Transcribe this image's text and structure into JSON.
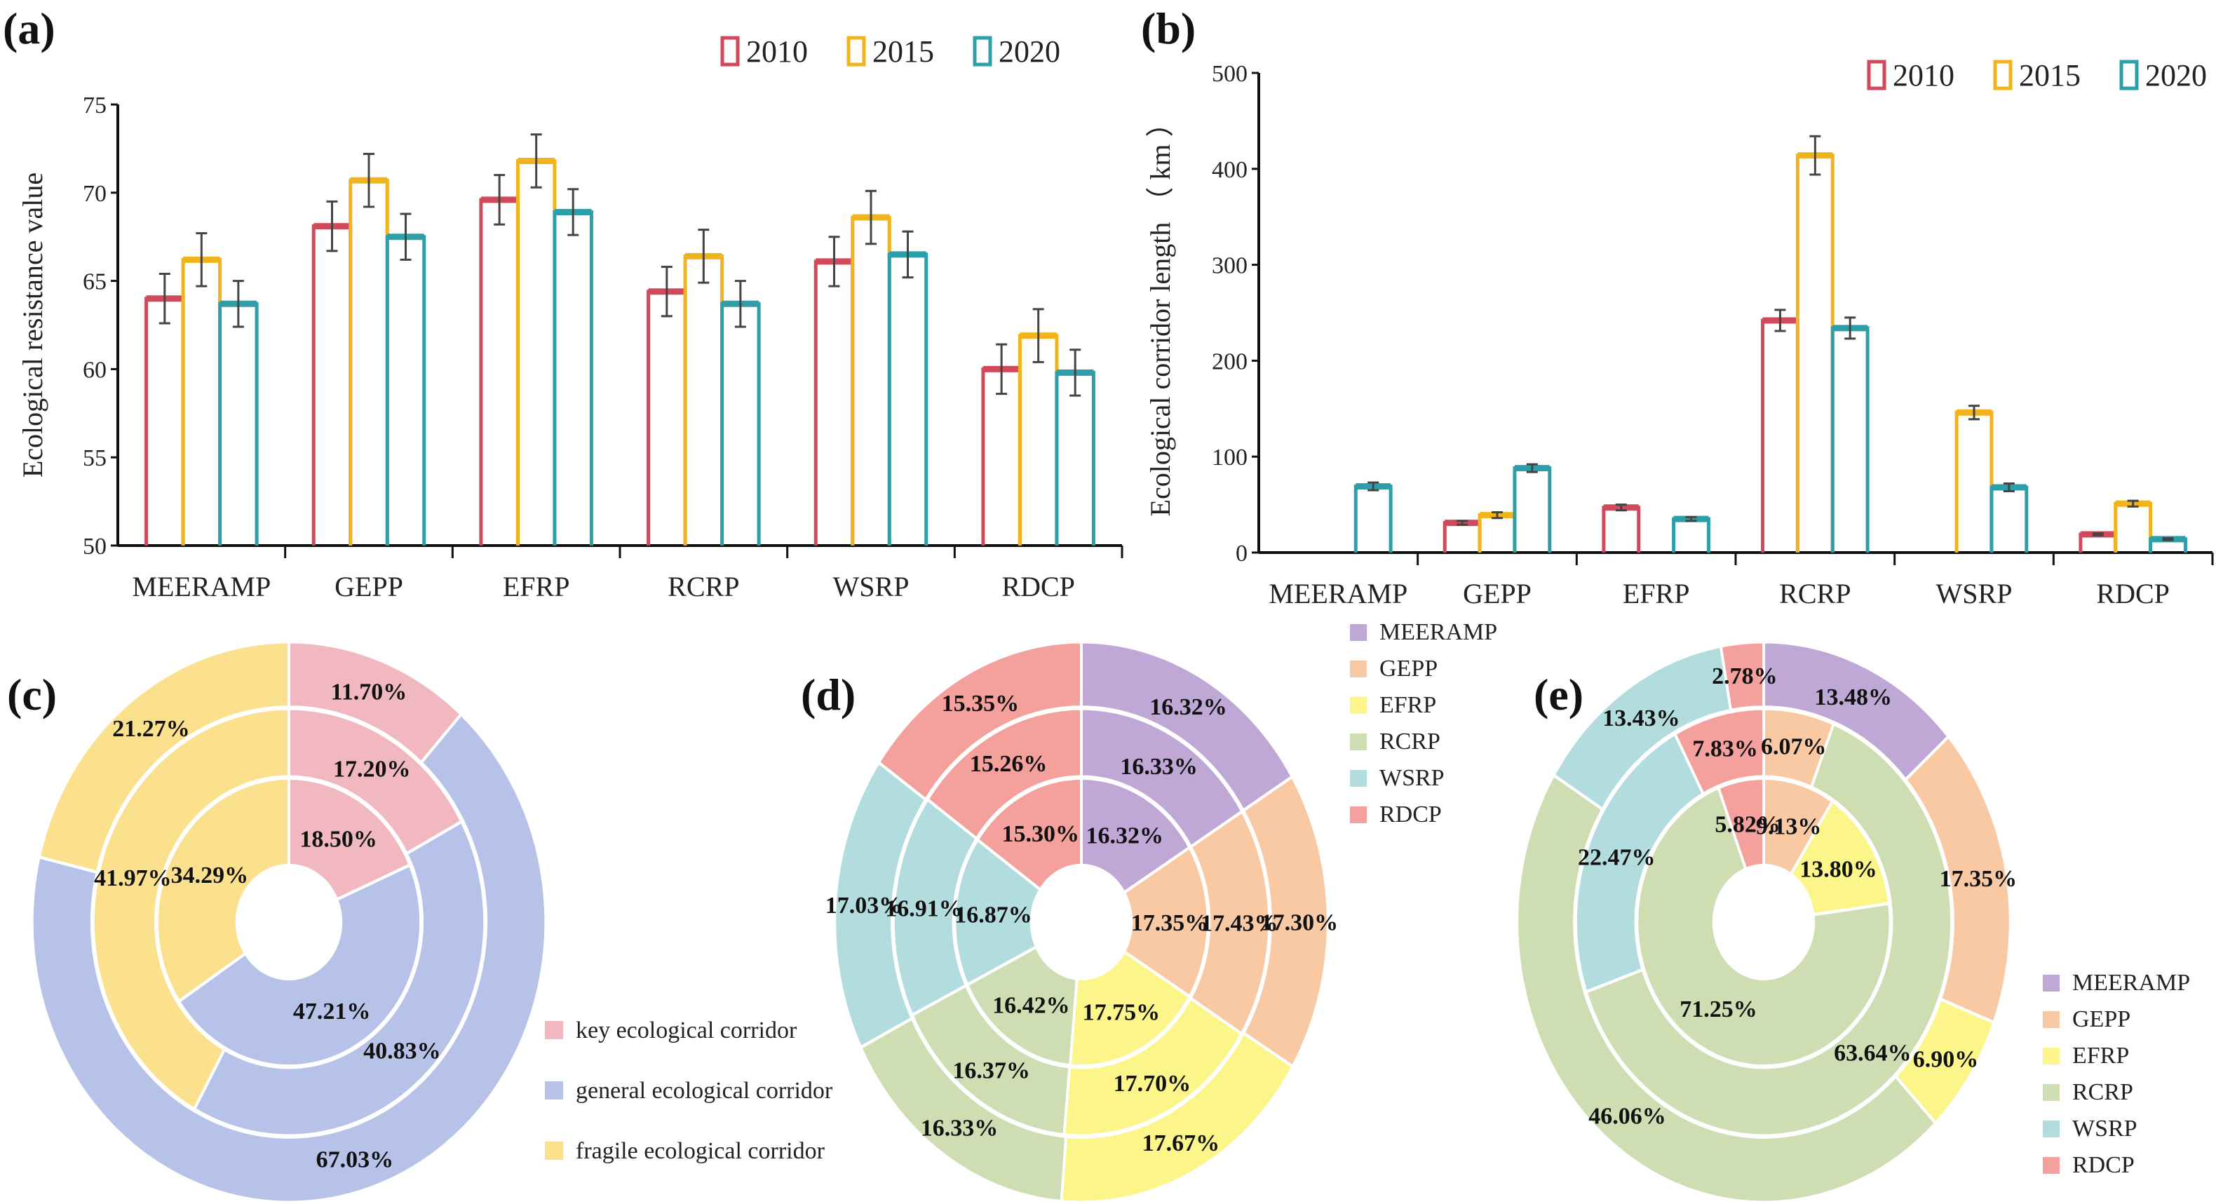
{
  "chart_data": [
    {
      "id": "a",
      "panel_label": "(a)",
      "type": "bar",
      "title": "",
      "xlabel": "",
      "ylabel": "Ecological  resistance  value",
      "ylim": [
        50,
        75
      ],
      "yticks": [
        50,
        55,
        60,
        65,
        70,
        75
      ],
      "categories": [
        "MEERAMP",
        "GEPP",
        "EFRP",
        "RCRP",
        "WSRP",
        "RDCP"
      ],
      "series": [
        {
          "name": "2010",
          "color": "#d04a5c",
          "values": [
            64.0,
            68.1,
            69.6,
            64.4,
            66.1,
            60.0
          ],
          "errors": [
            1.4,
            1.4,
            1.4,
            1.4,
            1.4,
            1.4
          ]
        },
        {
          "name": "2015",
          "color": "#f2b41c",
          "values": [
            66.2,
            70.7,
            71.8,
            66.4,
            68.6,
            61.9
          ],
          "errors": [
            1.5,
            1.5,
            1.5,
            1.5,
            1.5,
            1.5
          ]
        },
        {
          "name": "2020",
          "color": "#2d9fa8",
          "values": [
            63.7,
            67.5,
            68.9,
            63.7,
            66.5,
            59.8
          ],
          "errors": [
            1.3,
            1.3,
            1.3,
            1.3,
            1.3,
            1.3
          ]
        }
      ],
      "legend": "top-right",
      "grid": false
    },
    {
      "id": "b",
      "panel_label": "(b)",
      "type": "bar",
      "title": "",
      "xlabel": "",
      "ylabel": "Ecological corridor length （ km ）",
      "ylim": [
        0,
        500
      ],
      "yticks": [
        0,
        100,
        200,
        300,
        400,
        500
      ],
      "categories": [
        "MEERAMP",
        "GEPP",
        "EFRP",
        "RCRP",
        "WSRP",
        "RDCP"
      ],
      "series": [
        {
          "name": "2010",
          "color": "#d04a5c",
          "values": [
            0,
            31,
            47,
            242,
            0,
            19
          ],
          "errors": [
            0,
            2,
            3,
            11,
            0,
            1
          ]
        },
        {
          "name": "2015",
          "color": "#f2b41c",
          "values": [
            0,
            39,
            0,
            414,
            146,
            51
          ],
          "errors": [
            0,
            3,
            0,
            20,
            7,
            3
          ]
        },
        {
          "name": "2020",
          "color": "#2d9fa8",
          "values": [
            69,
            88,
            35,
            234,
            68,
            14
          ],
          "errors": [
            4,
            4,
            2,
            11,
            4,
            1
          ]
        }
      ],
      "legend": "top-right",
      "grid": false
    },
    {
      "id": "c",
      "panel_label": "(c)",
      "type": "pie",
      "title": "",
      "categories": [
        "key ecological corridor",
        "general ecological corridor",
        "fragile ecological corridor"
      ],
      "colors": [
        "#f2b8bf",
        "#b6c2e8",
        "#fbe08e"
      ],
      "rings": [
        {
          "ring": "inner",
          "values": [
            18.5,
            47.21,
            34.29
          ],
          "labels": [
            "18.50%",
            "47.21%",
            "34.29%"
          ]
        },
        {
          "ring": "middle",
          "values": [
            17.2,
            40.83,
            41.97
          ],
          "labels": [
            "17.20%",
            "40.83%",
            "41.97%"
          ]
        },
        {
          "ring": "outer",
          "values": [
            11.7,
            67.03,
            21.27
          ],
          "labels": [
            "11.70%",
            "67.03%",
            "21.27%"
          ]
        }
      ],
      "legend": "bottom-right"
    },
    {
      "id": "d",
      "panel_label": "(d)",
      "type": "pie",
      "title": "",
      "categories": [
        "MEERAMP",
        "GEPP",
        "EFRP",
        "RCRP",
        "WSRP",
        "RDCP"
      ],
      "colors": [
        "#bfa8d6",
        "#f9c9a4",
        "#fbf58a",
        "#cfddb2",
        "#b3dcde",
        "#f4a09c"
      ],
      "rings": [
        {
          "ring": "inner",
          "values": [
            16.32,
            17.35,
            17.75,
            16.42,
            16.87,
            15.3
          ],
          "labels": [
            "16.32%",
            "17.35%",
            "17.75%",
            "16.42%",
            "16.87%",
            "15.30%"
          ]
        },
        {
          "ring": "middle",
          "values": [
            16.33,
            17.43,
            17.7,
            16.37,
            16.91,
            15.26
          ],
          "labels": [
            "16.33%",
            "17.43%",
            "17.70%",
            "16.37%",
            "16.91%",
            "15.26%"
          ]
        },
        {
          "ring": "outer",
          "values": [
            16.32,
            17.3,
            17.67,
            16.33,
            17.03,
            15.35
          ],
          "labels": [
            "16.32%",
            "17.30%",
            "17.67%",
            "16.33%",
            "17.03%",
            "15.35%"
          ]
        }
      ],
      "legend": "top-right"
    },
    {
      "id": "e",
      "panel_label": "(e)",
      "type": "pie",
      "title": "",
      "categories": [
        "MEERAMP",
        "GEPP",
        "EFRP",
        "RCRP",
        "WSRP",
        "RDCP"
      ],
      "colors": [
        "#bfa8d6",
        "#f9c9a4",
        "#fbf58a",
        "#cfddb2",
        "#b3dcde",
        "#f4a09c"
      ],
      "rings": [
        {
          "ring": "inner",
          "values": [
            0,
            9.13,
            13.8,
            71.25,
            0,
            5.82
          ],
          "labels": [
            "",
            "9.13%",
            "13.80%",
            "71.25%",
            "",
            "5.82%"
          ]
        },
        {
          "ring": "middle",
          "values": [
            0,
            6.07,
            0,
            63.64,
            22.47,
            7.83
          ],
          "labels": [
            "",
            "6.07%",
            "",
            "63.64%",
            "22.47%",
            "7.83%"
          ]
        },
        {
          "ring": "outer",
          "values": [
            13.48,
            17.35,
            6.9,
            46.06,
            13.43,
            2.78
          ],
          "labels": [
            "13.48%",
            "17.35%",
            "6.90%",
            "46.06%",
            "13.43%",
            "2.78%"
          ]
        }
      ],
      "legend": "bottom-right"
    }
  ]
}
